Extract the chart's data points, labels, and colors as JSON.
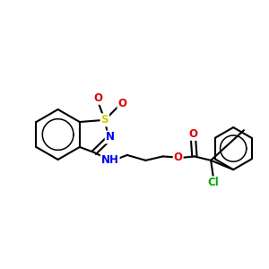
{
  "background_color": "#ffffff",
  "figure_size": [
    3.0,
    3.0
  ],
  "dpi": 100,
  "bond_color": "#000000",
  "S_color": "#cccc00",
  "N_color": "#0000ee",
  "O_color": "#dd0000",
  "Cl_color": "#00aa00",
  "line_width": 1.5,
  "font_size": 8.5,
  "xlim": [
    0,
    10.0
  ],
  "ylim": [
    0,
    10.0
  ]
}
